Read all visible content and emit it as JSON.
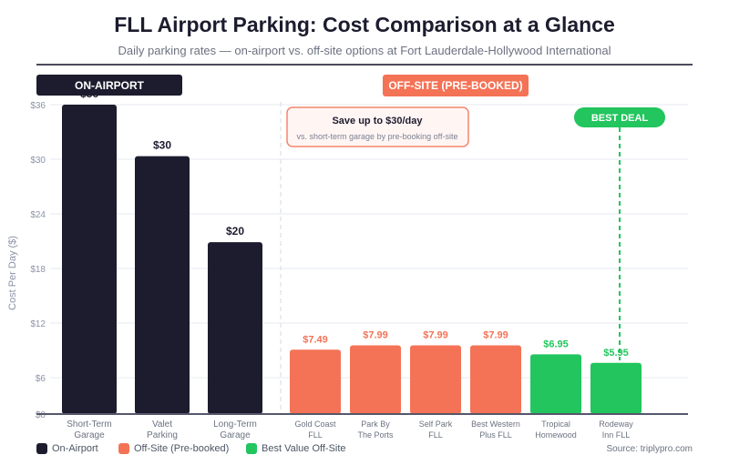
{
  "header": {
    "title": "FLL Airport Parking: Cost Comparison at a Glance",
    "subtitle": "Daily parking rates — on-airport vs. off-site options at Fort Lauderdale-Hollywood International"
  },
  "colors": {
    "on_airport": "#1c1c2e",
    "off_site": "#f47356",
    "best_value": "#22c55e",
    "grid": "#eef0f5",
    "axis_text": "#8b93a7"
  },
  "group_badges": {
    "on_airport": "ON-AIRPORT",
    "off_site": "OFF-SITE (PRE-BOOKED)"
  },
  "callout": {
    "title": "Save up to $30/day",
    "text": "vs. short-term garage by pre-booking off-site"
  },
  "best_deal_label": "BEST DEAL",
  "chart_data": {
    "type": "bar",
    "title": "FLL Airport Parking: Cost Comparison at a Glance",
    "xlabel": "",
    "ylabel": "Cost Per Day ($)",
    "ylim": [
      0,
      36
    ],
    "yticks": [
      0,
      6,
      12,
      18,
      24,
      30,
      36
    ],
    "ytick_labels": [
      "$0",
      "$6",
      "$12",
      "$18",
      "$24",
      "$30",
      "$36"
    ],
    "grid": true,
    "categories": [
      [
        "Short-Term",
        "Garage"
      ],
      [
        "Valet",
        "Parking"
      ],
      [
        "Long-Term",
        "Garage"
      ],
      [
        "Gold Coast",
        "FLL"
      ],
      [
        "Park By",
        "The Ports"
      ],
      [
        "Self Park",
        "FLL"
      ],
      [
        "Best Western",
        "Plus FLL"
      ],
      [
        "Tropical",
        "Homewood"
      ],
      [
        "Rodeway",
        "Inn FLL"
      ]
    ],
    "values": [
      36,
      30,
      20,
      7.49,
      7.99,
      7.99,
      7.99,
      6.95,
      5.95
    ],
    "value_labels": [
      "$36",
      "$30",
      "$20",
      "$7.49",
      "$7.99",
      "$7.99",
      "$7.99",
      "$6.95",
      "$5.95"
    ],
    "groups": [
      "on_airport",
      "on_airport",
      "on_airport",
      "off_site",
      "off_site",
      "off_site",
      "off_site",
      "best_value",
      "best_value"
    ],
    "legend": [
      {
        "key": "on_airport",
        "label": "On-Airport"
      },
      {
        "key": "off_site",
        "label": "Off-Site (Pre-booked)"
      },
      {
        "key": "best_value",
        "label": "Best Value Off-Site"
      }
    ],
    "legend_position": "bottom-left",
    "highlight_index": 8
  },
  "source": "Source: triplypro.com"
}
